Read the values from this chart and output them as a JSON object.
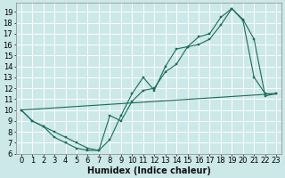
{
  "xlabel": "Humidex (Indice chaleur)",
  "bg_color": "#cce8e8",
  "line_color": "#1a6b5a",
  "grid_color": "#ffffff",
  "xlim": [
    -0.5,
    23.5
  ],
  "ylim": [
    6,
    19.8
  ],
  "xticks": [
    0,
    1,
    2,
    3,
    4,
    5,
    6,
    7,
    8,
    9,
    10,
    11,
    12,
    13,
    14,
    15,
    16,
    17,
    18,
    19,
    20,
    21,
    22,
    23
  ],
  "yticks": [
    6,
    7,
    8,
    9,
    10,
    11,
    12,
    13,
    14,
    15,
    16,
    17,
    18,
    19
  ],
  "line1_x": [
    0,
    1,
    2,
    3,
    4,
    5,
    6,
    7,
    8,
    9,
    10,
    11,
    12,
    13,
    14,
    15,
    16,
    17,
    18,
    19,
    20,
    21,
    22,
    23
  ],
  "line1_y": [
    10,
    9,
    8.5,
    7.5,
    7,
    6.5,
    6.3,
    6.3,
    9.5,
    9,
    10.8,
    11.8,
    12,
    13.5,
    14.2,
    15.8,
    16,
    16.5,
    17.8,
    19.3,
    18.2,
    13,
    11.5,
    11.5
  ],
  "line2_x": [
    0,
    1,
    2,
    3,
    4,
    5,
    6,
    7,
    8,
    9,
    10,
    11,
    12,
    13,
    14,
    15,
    16,
    17,
    18,
    19,
    20,
    21,
    22,
    23
  ],
  "line2_y": [
    10,
    9,
    8.5,
    8,
    7.5,
    7,
    6.5,
    6.3,
    7.3,
    9.5,
    11.5,
    13,
    11.8,
    14,
    15.6,
    15.8,
    16.7,
    17,
    18.5,
    19.3,
    18.3,
    16.5,
    11.3,
    11.5
  ],
  "line3_x": [
    0,
    23
  ],
  "line3_y": [
    10,
    11.5
  ],
  "xlabel_fontsize": 7,
  "tick_fontsize": 6
}
